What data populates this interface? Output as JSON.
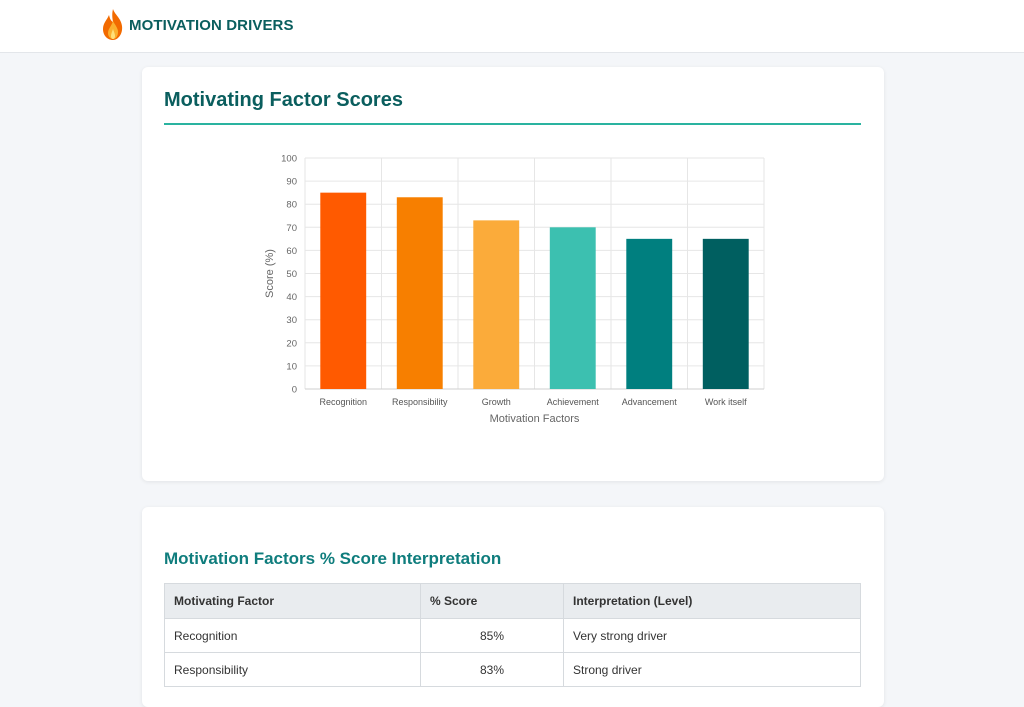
{
  "brand": {
    "name": "MOTIVATION DRIVERS",
    "icon": "flame-icon"
  },
  "chart_card": {
    "title": "Motivating Factor Scores"
  },
  "chart_data": {
    "type": "bar",
    "title": "",
    "xlabel": "Motivation Factors",
    "ylabel": "Score (%)",
    "ylim": [
      0,
      100
    ],
    "yticks": [
      0,
      10,
      20,
      30,
      40,
      50,
      60,
      70,
      80,
      90,
      100
    ],
    "grid": true,
    "categories": [
      "Recognition",
      "Responsibility",
      "Growth",
      "Achievement",
      "Advancement",
      "Work itself"
    ],
    "values": [
      85,
      83,
      73,
      70,
      65,
      65
    ],
    "colors": [
      "#ff5a00",
      "#f77f00",
      "#fbab3a",
      "#3cc0b0",
      "#007f7f",
      "#005f60"
    ]
  },
  "table_card": {
    "title": "Motivation Factors % Score Interpretation",
    "headers": [
      "Motivating Factor",
      "% Score",
      "Interpretation (Level)"
    ],
    "rows": [
      {
        "factor": "Recognition",
        "score": "85%",
        "level": "Very strong driver"
      },
      {
        "factor": "Responsibility",
        "score": "83%",
        "level": "Strong driver"
      }
    ]
  }
}
